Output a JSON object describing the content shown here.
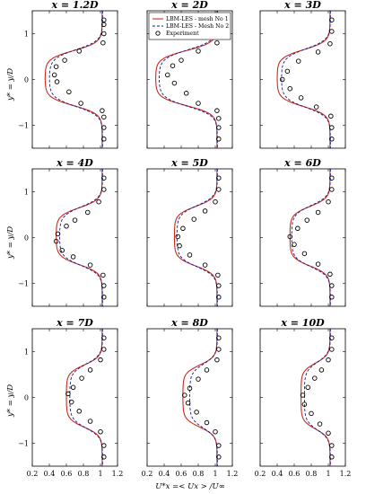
{
  "chart_data": {
    "type": "line",
    "shared_ylabel": "y* = y/D",
    "shared_xlabel": "U*x =< Ux > /U∞",
    "xlim": [
      0.2,
      1.2
    ],
    "ylim": [
      -1.5,
      1.5
    ],
    "xticks": [
      "0.2",
      "0.4",
      "0.6",
      "0.8",
      "1",
      "1.2"
    ],
    "yticks": [
      "-1",
      "0",
      "1"
    ],
    "legend": {
      "location": "top-right of first panel row, centre panel",
      "entries": [
        "LBM-LES - mesh No 1",
        "LBM-LES - Mesh No 2",
        "Experiment"
      ]
    },
    "colors": {
      "mesh1": "#cc2a1e",
      "mesh2": "#1a1a8c",
      "experiment": "#000000"
    },
    "panels": [
      {
        "title": "x = 1.2D",
        "min_u": 0.35,
        "min_u2": 0.4,
        "halfwidth": 0.6,
        "experiment": [
          [
            1.04,
            1.3
          ],
          [
            1.04,
            1.2
          ],
          [
            1.04,
            1.0
          ],
          [
            1.03,
            0.8
          ],
          [
            0.75,
            0.62
          ],
          [
            0.58,
            0.42
          ],
          [
            0.48,
            0.28
          ],
          [
            0.46,
            0.1
          ],
          [
            0.49,
            -0.05
          ],
          [
            0.63,
            -0.27
          ],
          [
            0.77,
            -0.52
          ],
          [
            1.02,
            -0.68
          ],
          [
            1.04,
            -0.82
          ],
          [
            1.04,
            -1.05
          ],
          [
            1.04,
            -1.3
          ]
        ]
      },
      {
        "title": "x = 2D",
        "min_u": 0.3,
        "min_u2": 0.34,
        "halfwidth": 0.6,
        "experiment": [
          [
            1.04,
            1.3
          ],
          [
            1.04,
            1.15
          ],
          [
            1.04,
            0.95
          ],
          [
            1.02,
            0.8
          ],
          [
            0.8,
            0.62
          ],
          [
            0.6,
            0.42
          ],
          [
            0.5,
            0.3
          ],
          [
            0.44,
            0.1
          ],
          [
            0.52,
            -0.08
          ],
          [
            0.66,
            -0.3
          ],
          [
            0.8,
            -0.52
          ],
          [
            1.02,
            -0.68
          ],
          [
            1.04,
            -0.85
          ],
          [
            1.04,
            -1.05
          ],
          [
            1.04,
            -1.3
          ]
        ]
      },
      {
        "title": "x = 3D",
        "min_u": 0.4,
        "min_u2": 0.45,
        "halfwidth": 0.62,
        "experiment": [
          [
            1.04,
            1.3
          ],
          [
            1.04,
            1.05
          ],
          [
            1.02,
            0.78
          ],
          [
            0.88,
            0.6
          ],
          [
            0.65,
            0.4
          ],
          [
            0.52,
            0.18
          ],
          [
            0.46,
            0.0
          ],
          [
            0.55,
            -0.2
          ],
          [
            0.68,
            -0.4
          ],
          [
            0.86,
            -0.6
          ],
          [
            1.03,
            -0.8
          ],
          [
            1.04,
            -1.05
          ],
          [
            1.04,
            -1.3
          ]
        ]
      },
      {
        "title": "x = 4D",
        "min_u": 0.48,
        "min_u2": 0.52,
        "halfwidth": 0.62,
        "experiment": [
          [
            1.04,
            1.3
          ],
          [
            1.04,
            1.05
          ],
          [
            0.98,
            0.78
          ],
          [
            0.85,
            0.55
          ],
          [
            0.7,
            0.38
          ],
          [
            0.6,
            0.25
          ],
          [
            0.5,
            0.08
          ],
          [
            0.48,
            -0.08
          ],
          [
            0.55,
            -0.28
          ],
          [
            0.68,
            -0.42
          ],
          [
            0.88,
            -0.6
          ],
          [
            1.03,
            -0.82
          ],
          [
            1.04,
            -1.05
          ],
          [
            1.04,
            -1.3
          ]
        ]
      },
      {
        "title": "x = 5D",
        "min_u": 0.52,
        "min_u2": 0.55,
        "halfwidth": 0.65,
        "experiment": [
          [
            1.04,
            1.3
          ],
          [
            1.04,
            1.05
          ],
          [
            1.0,
            0.78
          ],
          [
            0.88,
            0.58
          ],
          [
            0.75,
            0.4
          ],
          [
            0.62,
            0.2
          ],
          [
            0.56,
            0.02
          ],
          [
            0.58,
            -0.18
          ],
          [
            0.7,
            -0.38
          ],
          [
            0.88,
            -0.6
          ],
          [
            1.03,
            -0.82
          ],
          [
            1.04,
            -1.05
          ],
          [
            1.04,
            -1.3
          ]
        ]
      },
      {
        "title": "x = 6D",
        "min_u": 0.55,
        "min_u2": 0.57,
        "halfwidth": 0.65,
        "experiment": [
          [
            1.04,
            1.3
          ],
          [
            1.04,
            1.05
          ],
          [
            1.0,
            0.78
          ],
          [
            0.88,
            0.55
          ],
          [
            0.75,
            0.38
          ],
          [
            0.64,
            0.2
          ],
          [
            0.55,
            0.02
          ],
          [
            0.6,
            -0.15
          ],
          [
            0.72,
            -0.35
          ],
          [
            0.88,
            -0.58
          ],
          [
            1.02,
            -0.8
          ],
          [
            1.04,
            -1.05
          ],
          [
            1.04,
            -1.3
          ]
        ]
      },
      {
        "title": "x = 7D",
        "min_u": 0.6,
        "min_u2": 0.64,
        "halfwidth": 0.68,
        "experiment": [
          [
            1.04,
            1.3
          ],
          [
            1.04,
            1.05
          ],
          [
            1.0,
            0.82
          ],
          [
            0.88,
            0.6
          ],
          [
            0.78,
            0.42
          ],
          [
            0.68,
            0.22
          ],
          [
            0.62,
            0.08
          ],
          [
            0.66,
            -0.1
          ],
          [
            0.75,
            -0.3
          ],
          [
            0.88,
            -0.52
          ],
          [
            1.0,
            -0.75
          ],
          [
            1.04,
            -1.05
          ],
          [
            1.04,
            -1.3
          ]
        ]
      },
      {
        "title": "x = 8D",
        "min_u": 0.62,
        "min_u2": 0.7,
        "halfwidth": 0.68,
        "experiment": [
          [
            1.04,
            1.3
          ],
          [
            1.04,
            1.05
          ],
          [
            1.02,
            0.82
          ],
          [
            0.9,
            0.6
          ],
          [
            0.8,
            0.4
          ],
          [
            0.7,
            0.2
          ],
          [
            0.64,
            0.05
          ],
          [
            0.68,
            -0.12
          ],
          [
            0.78,
            -0.32
          ],
          [
            0.9,
            -0.55
          ],
          [
            1.0,
            -0.75
          ],
          [
            1.04,
            -1.05
          ],
          [
            1.04,
            -1.3
          ]
        ]
      },
      {
        "title": "x = 10D",
        "min_u": 0.68,
        "min_u2": 0.72,
        "halfwidth": 0.72,
        "experiment": [
          [
            1.04,
            1.3
          ],
          [
            1.04,
            1.05
          ],
          [
            1.0,
            0.82
          ],
          [
            0.92,
            0.6
          ],
          [
            0.84,
            0.42
          ],
          [
            0.76,
            0.22
          ],
          [
            0.7,
            0.05
          ],
          [
            0.72,
            -0.15
          ],
          [
            0.8,
            -0.35
          ],
          [
            0.9,
            -0.58
          ],
          [
            1.0,
            -0.78
          ],
          [
            1.04,
            -1.05
          ],
          [
            1.04,
            -1.3
          ]
        ]
      }
    ]
  }
}
